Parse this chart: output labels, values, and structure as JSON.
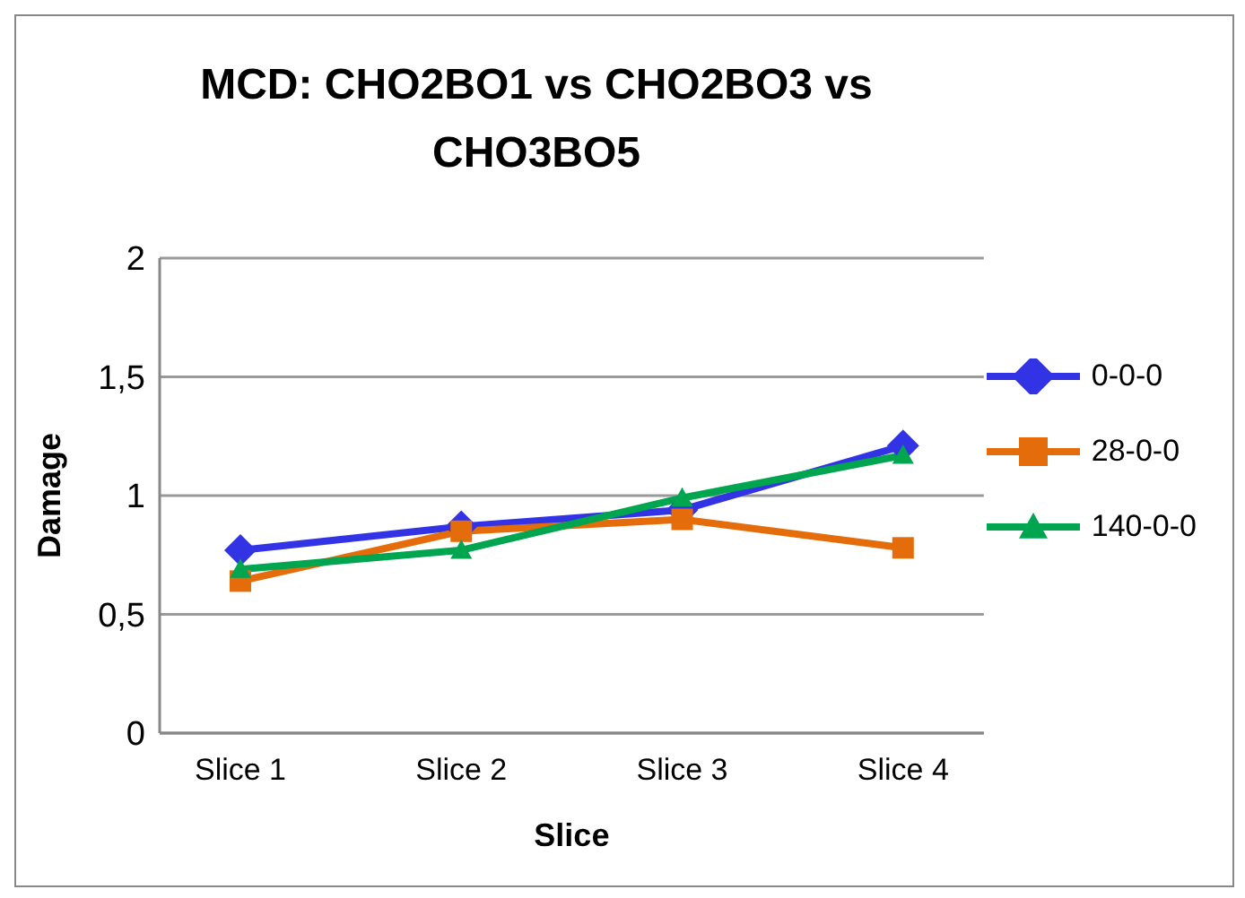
{
  "chart_data": {
    "type": "line",
    "title": "MCD: CHO2BO1 vs CHO2BO3 vs CHO3BO5",
    "xlabel": "Slice",
    "ylabel": "Damage",
    "categories": [
      "Slice 1",
      "Slice 2",
      "Slice 3",
      "Slice 4"
    ],
    "ylim": [
      0,
      2
    ],
    "yticks": [
      0,
      {
        "value": 0.5,
        "label": "0,5"
      },
      1,
      {
        "value": 1.5,
        "label": "1,5"
      },
      2
    ],
    "grid": "y",
    "legend": "right",
    "series": [
      {
        "name": "0-0-0",
        "color": "#3333e6",
        "marker": "diamond",
        "values": [
          0.77,
          0.87,
          0.94,
          1.21
        ]
      },
      {
        "name": "28-0-0",
        "color": "#e46c0a",
        "marker": "square",
        "values": [
          0.64,
          0.85,
          0.9,
          0.78
        ]
      },
      {
        "name": "140-0-0",
        "color": "#00a550",
        "marker": "triangle",
        "values": [
          0.69,
          0.77,
          0.99,
          1.17
        ]
      }
    ]
  }
}
